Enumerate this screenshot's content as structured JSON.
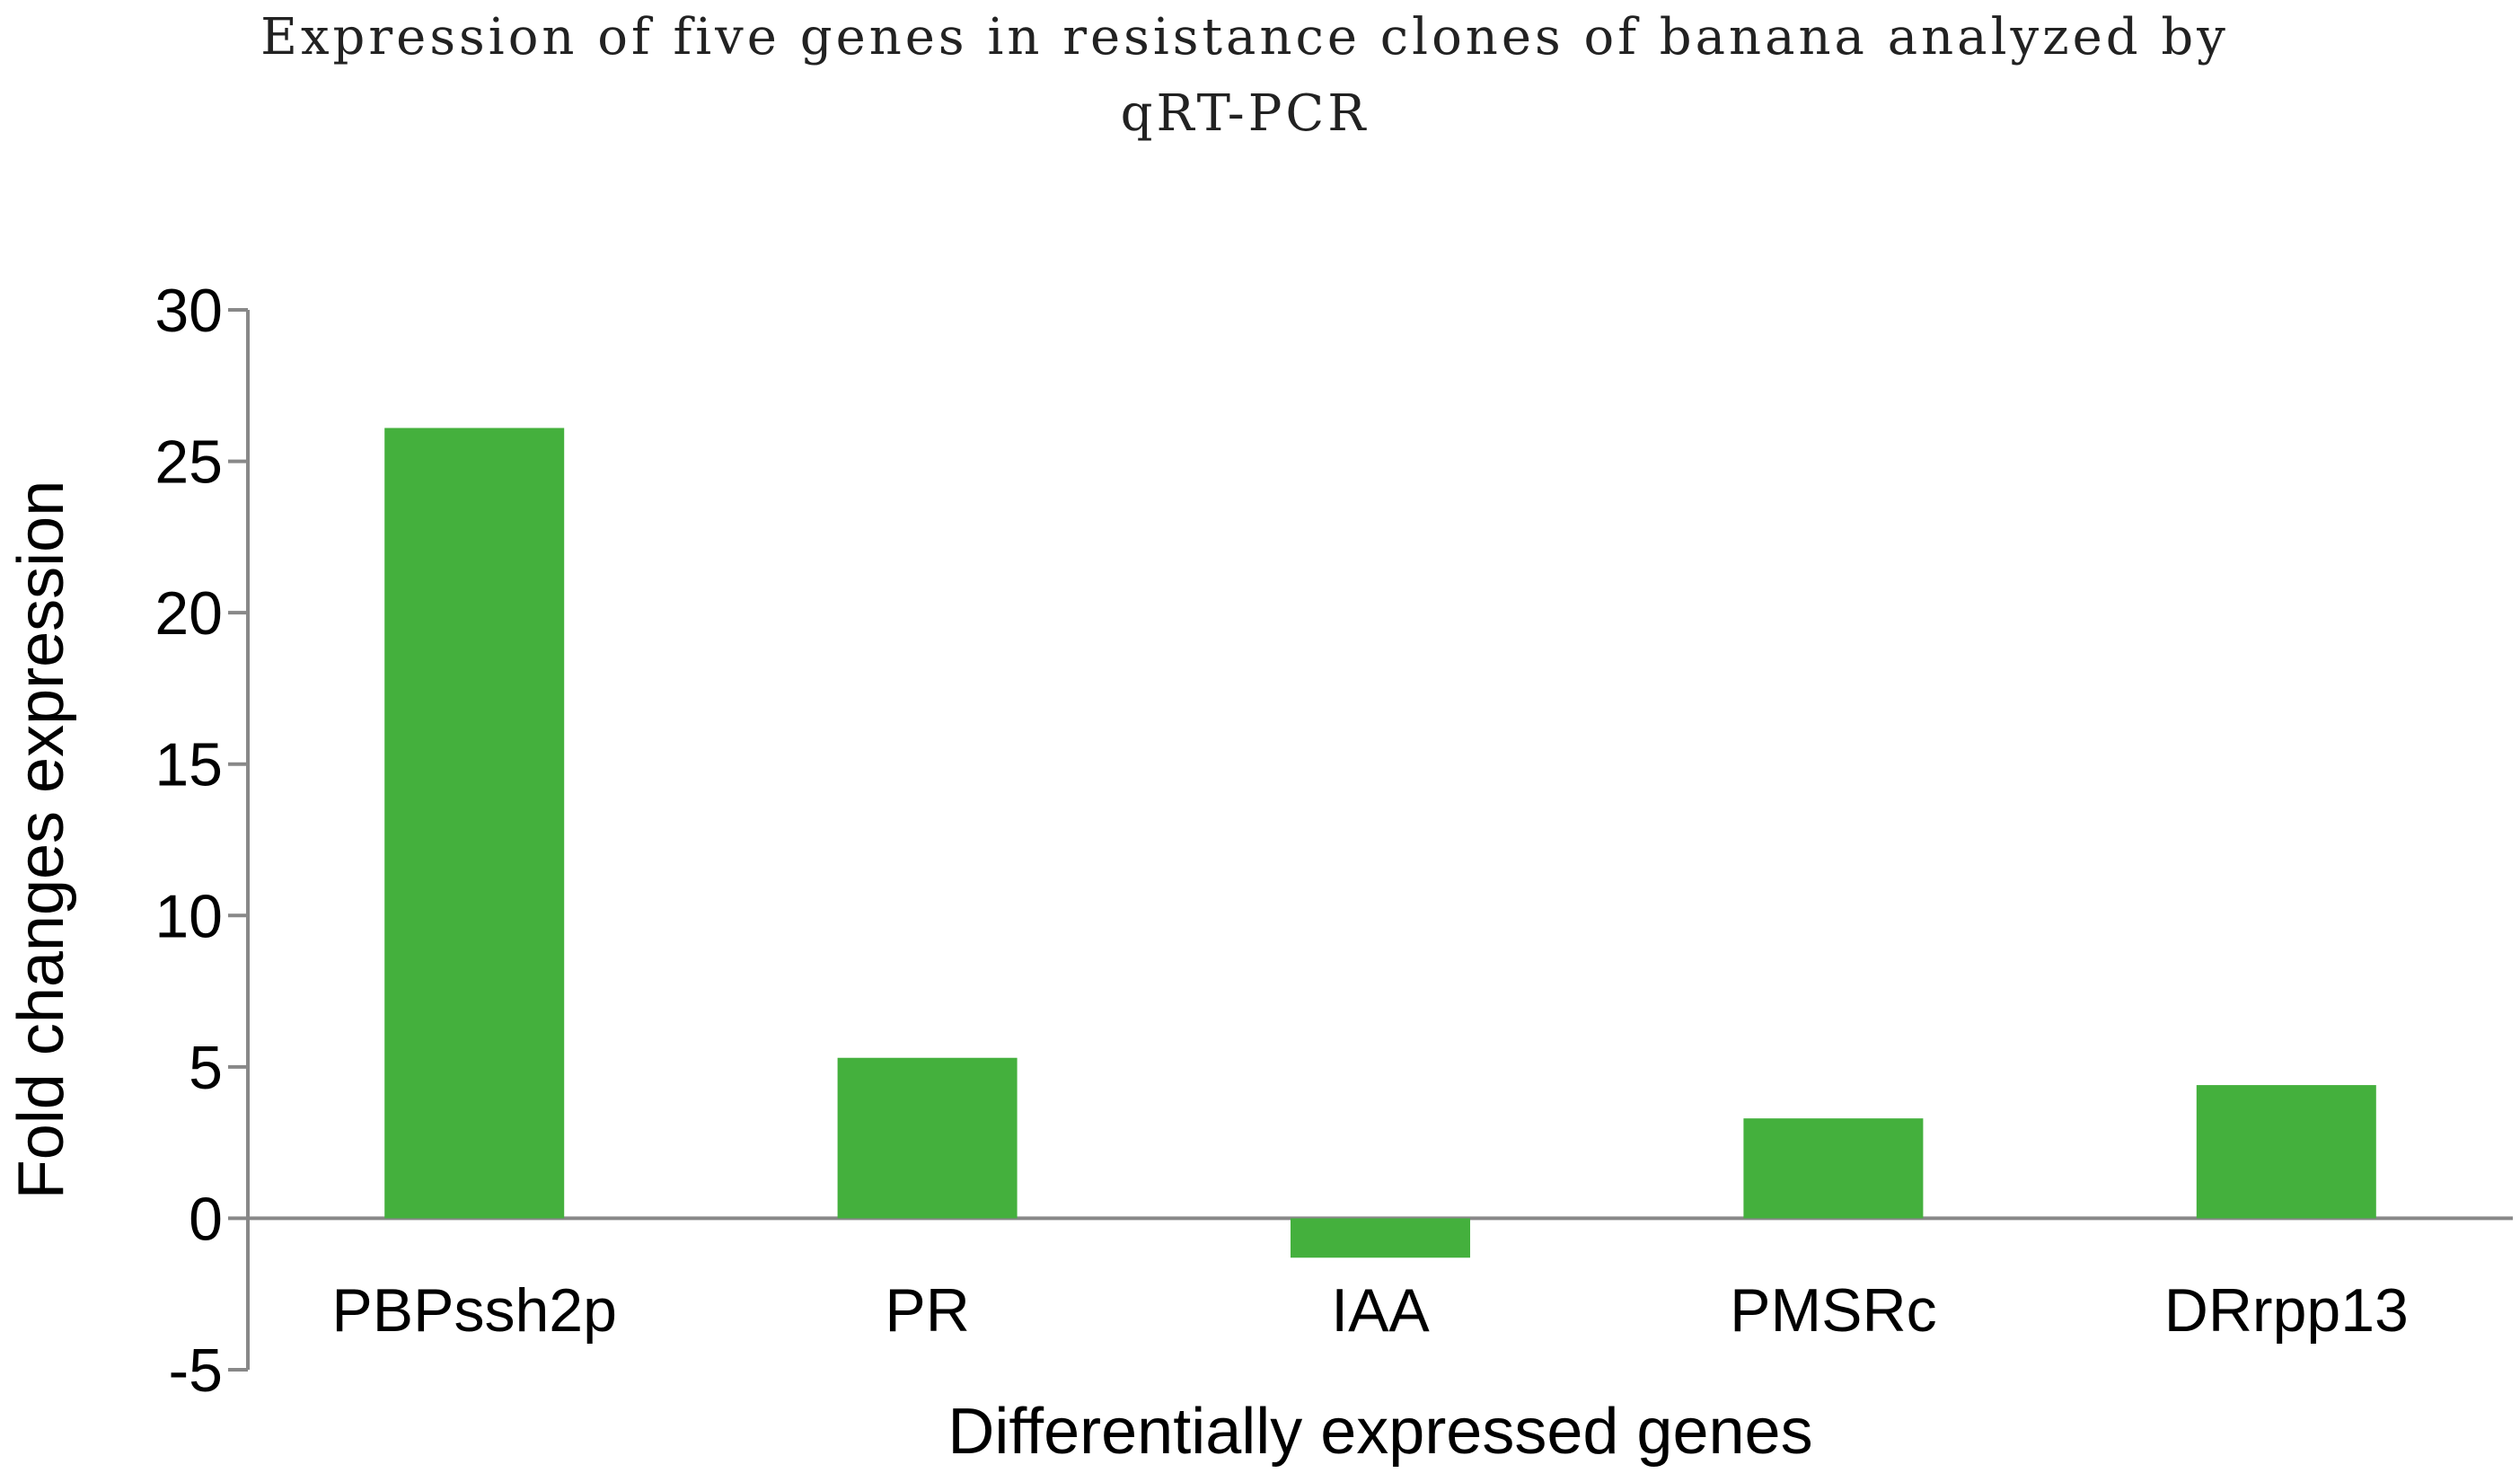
{
  "chart_data": {
    "type": "bar",
    "title_lines": [
      "Expression of five genes in resistance clones of banana analyzed by",
      "qRT-PCR"
    ],
    "xlabel": "Differentially expressed genes",
    "ylabel": "Fold changes expression",
    "categories": [
      "PBPssh2p",
      "PR",
      "IAA",
      "PMSRc",
      "DRrpp13"
    ],
    "values": [
      26.1,
      5.3,
      -1.3,
      3.3,
      4.4
    ],
    "ylim": [
      -5,
      30
    ],
    "yticks": [
      "30",
      "25",
      "20",
      "15",
      "10",
      "5",
      "0",
      "-5"
    ],
    "bar_color": "#44b03d",
    "grid": false,
    "legend": "none"
  }
}
